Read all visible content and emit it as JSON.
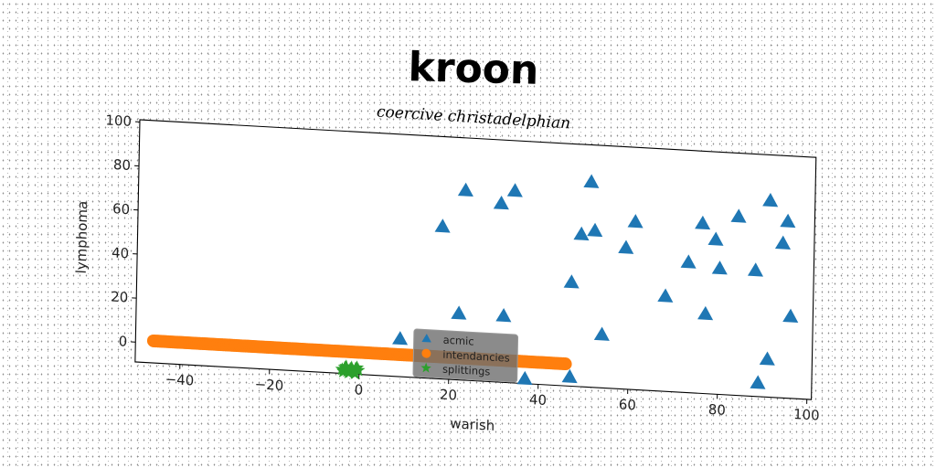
{
  "chart_data": {
    "type": "scatter",
    "title": "kroon",
    "subtitle": "coercive christadelphian",
    "xlabel": "warish",
    "ylabel": "lymphoma",
    "xlim": [
      -50,
      101
    ],
    "ylim": [
      -9,
      101
    ],
    "xticks": [
      -40,
      -20,
      0,
      20,
      40,
      60,
      80,
      100
    ],
    "xtick_labels": [
      "−40",
      "−20",
      "0",
      "20",
      "40",
      "60",
      "80",
      "100"
    ],
    "yticks": [
      0,
      20,
      40,
      60,
      80,
      100
    ],
    "ytick_labels": [
      "0",
      "20",
      "40",
      "60",
      "80",
      "100"
    ],
    "grid": false,
    "legend_placement": "bottom-center",
    "series": [
      {
        "name": "acmic",
        "marker": "triangle",
        "color": "#1f77b4",
        "x": [
          9,
          18,
          23,
          22,
          31,
          34,
          32,
          47,
          47,
          49,
          51,
          52,
          54,
          59,
          61,
          68,
          73,
          76,
          77,
          79,
          80,
          84,
          88,
          89,
          91,
          91,
          94,
          95,
          96,
          37
        ],
        "y": [
          8,
          60,
          77,
          21,
          72,
          78,
          21,
          38,
          -5,
          60,
          84,
          62,
          15,
          55,
          67,
          34,
          50,
          68,
          27,
          61,
          48,
          72,
          48,
          -3,
          80,
          8,
          61,
          71,
          28,
          -7
        ]
      },
      {
        "name": "intendancies",
        "marker": "circle",
        "color": "#ff7f0e",
        "x_range": [
          -46,
          46
        ],
        "y": 1,
        "count": 220
      },
      {
        "name": "splittings",
        "marker": "star",
        "color": "#2ca02c",
        "x": [
          -3.8,
          -3.2,
          -2.6,
          -2.0,
          -1.4,
          -0.8,
          -0.2,
          -3.5,
          -2.3,
          -1.1,
          -0.5,
          -2.9,
          -1.7,
          -0.9
        ],
        "y": [
          -7.2,
          -6.3,
          -7.8,
          -6.8,
          -7.5,
          -6.5,
          -7.1,
          -8.2,
          -8.5,
          -8.0,
          -6.0,
          -5.8,
          -6.2,
          -8.7
        ]
      }
    ]
  }
}
